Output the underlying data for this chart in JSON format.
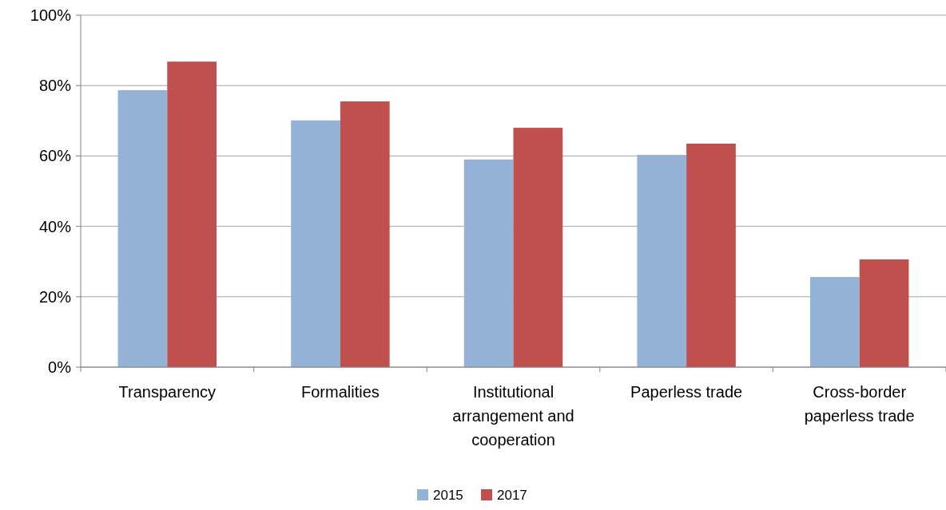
{
  "chart_data": {
    "type": "bar",
    "categories": [
      "Transparency",
      "Formalities",
      "Institutional arrangement and cooperation",
      "Paperless trade",
      "Cross-border paperless trade"
    ],
    "series": [
      {
        "name": "2015",
        "color": "#95b3d7",
        "values": [
          78.7,
          70.1,
          59.0,
          60.3,
          25.6
        ]
      },
      {
        "name": "2017",
        "color": "#c0504d",
        "values": [
          86.8,
          75.5,
          68.0,
          63.5,
          30.6
        ]
      }
    ],
    "ylim": [
      0,
      100
    ],
    "yticks": [
      {
        "value": 0,
        "label": "0%"
      },
      {
        "value": 20,
        "label": "20%"
      },
      {
        "value": 40,
        "label": "40%"
      },
      {
        "value": 60,
        "label": "60%"
      },
      {
        "value": 80,
        "label": "80%"
      },
      {
        "value": 100,
        "label": "100%"
      }
    ],
    "grid": "y",
    "legend": "bottom"
  }
}
